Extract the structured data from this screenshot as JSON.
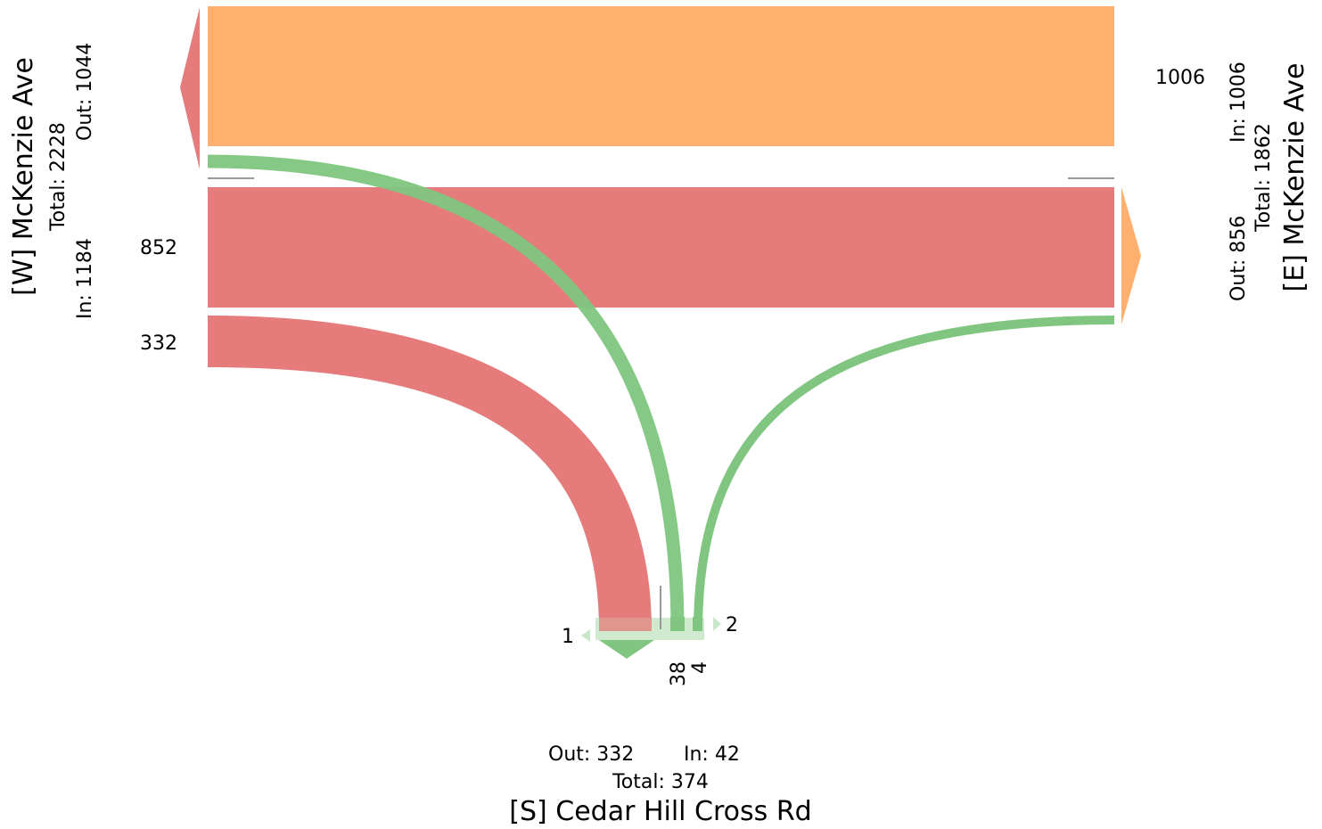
{
  "roads": {
    "west": {
      "name": "[W] McKenzie Ave",
      "total": "Total: 2228",
      "in": "In: 1184",
      "out": "Out: 1044"
    },
    "east": {
      "name": "[E] McKenzie Ave",
      "total": "Total: 1862",
      "in": "In: 1006",
      "out": "Out: 856"
    },
    "south": {
      "name": "[S] Cedar Hill Cross Rd",
      "total": "Total: 374",
      "in": "In: 42",
      "out": "Out: 332"
    }
  },
  "flows": [
    {
      "id": "east-to-west-through",
      "from": "E",
      "to": "W",
      "movement": "through",
      "volume": 1006,
      "label": "1006",
      "color": "#ffb06f"
    },
    {
      "id": "west-to-east-through",
      "from": "W",
      "to": "E",
      "movement": "through",
      "volume": 852,
      "label": "852",
      "color": "#e57b7b"
    },
    {
      "id": "west-to-south-right",
      "from": "W",
      "to": "S",
      "movement": "right",
      "volume": 332,
      "label": "332",
      "color": "#e57b7b"
    },
    {
      "id": "south-to-west-left",
      "from": "S",
      "to": "W",
      "movement": "left",
      "volume": 38,
      "label": "38",
      "color": "#80c680"
    },
    {
      "id": "south-to-east-right",
      "from": "S",
      "to": "E",
      "movement": "right",
      "volume": 4,
      "label": "4",
      "color": "#80c680"
    }
  ],
  "south_markers": {
    "left": "1",
    "right": "2"
  },
  "colors": {
    "west_approach": "#e57b7b",
    "east_approach": "#ffb06f",
    "south_approach": "#80c680",
    "divider": "#999999"
  }
}
